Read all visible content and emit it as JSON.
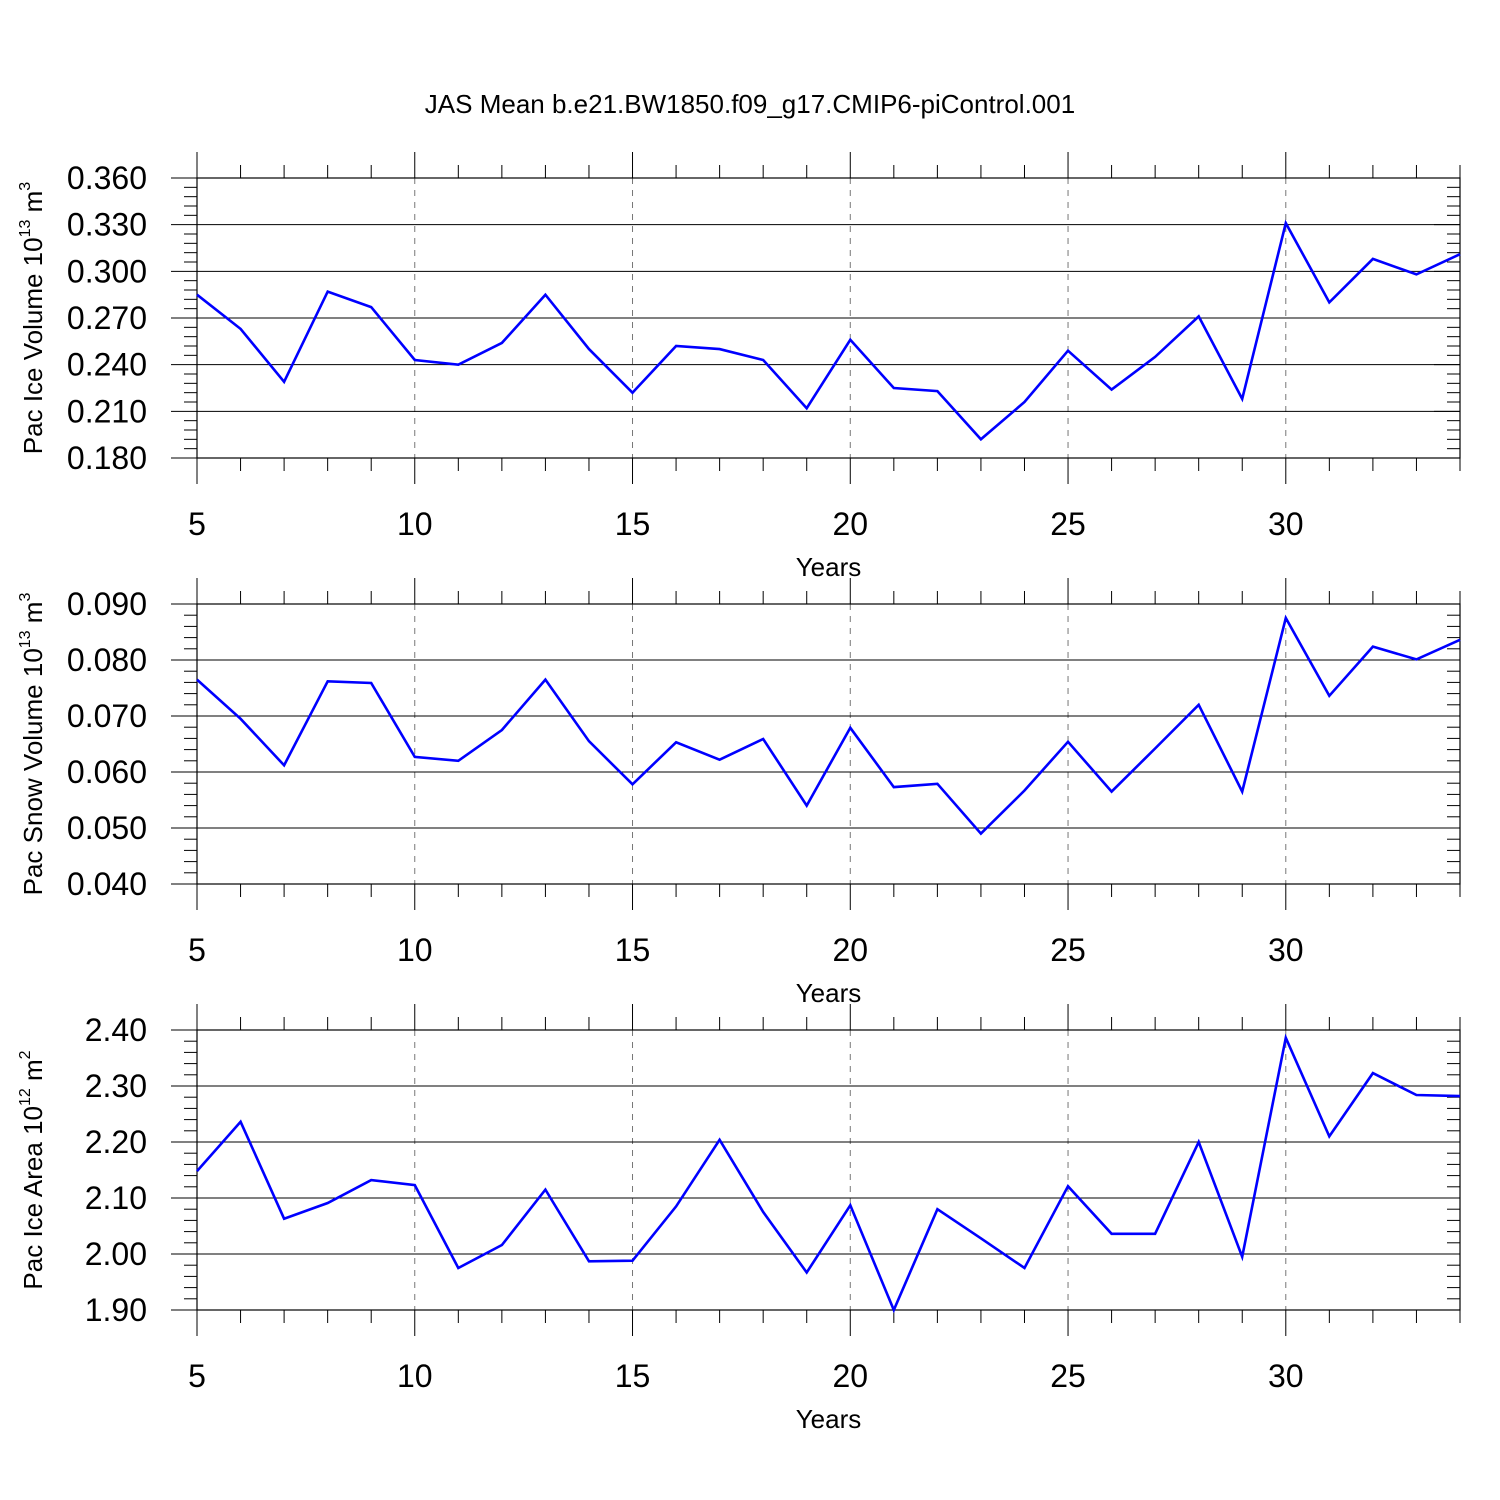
{
  "title": "JAS Mean b.e21.BW1850.f09_g17.CMIP6-piControl.001",
  "colors": {
    "series": "#0000ff",
    "axis": "#000000",
    "grid": "#777777"
  },
  "chart_data": [
    {
      "type": "line",
      "ylabel": {
        "text": "Pac Ice Volume 10",
        "exp": "13",
        "unit": "m",
        "unit_exp": "3"
      },
      "xlabel": "Years",
      "xlim": [
        5,
        34
      ],
      "ylim": [
        0.18,
        0.36
      ],
      "x_ticks": [
        "5",
        "10",
        "15",
        "20",
        "25",
        "30"
      ],
      "y_ticks": [
        "0.180",
        "0.210",
        "0.240",
        "0.270",
        "0.300",
        "0.330",
        "0.360"
      ],
      "grid": "dashed vertical at major x ticks",
      "x": [
        5,
        6,
        7,
        8,
        9,
        10,
        11,
        12,
        13,
        14,
        15,
        16,
        17,
        18,
        19,
        20,
        21,
        22,
        23,
        24,
        25,
        26,
        27,
        28,
        29,
        30,
        31,
        32,
        33,
        34
      ],
      "series": [
        {
          "values": [
            0.285,
            0.263,
            0.229,
            0.287,
            0.277,
            0.243,
            0.24,
            0.254,
            0.285,
            0.25,
            0.222,
            0.252,
            0.25,
            0.243,
            0.212,
            0.256,
            0.225,
            0.223,
            0.192,
            0.216,
            0.249,
            0.224,
            0.245,
            0.271,
            0.218,
            0.331,
            0.28,
            0.308,
            0.298,
            0.311
          ]
        }
      ]
    },
    {
      "type": "line",
      "ylabel": {
        "text": "Pac Snow Volume 10",
        "exp": "13",
        "unit": "m",
        "unit_exp": "3"
      },
      "xlabel": "Years",
      "xlim": [
        5,
        34
      ],
      "ylim": [
        0.04,
        0.09
      ],
      "x_ticks": [
        "5",
        "10",
        "15",
        "20",
        "25",
        "30"
      ],
      "y_ticks": [
        "0.040",
        "0.050",
        "0.060",
        "0.070",
        "0.080",
        "0.090"
      ],
      "grid": "dashed vertical at major x ticks",
      "x": [
        5,
        6,
        7,
        8,
        9,
        10,
        11,
        12,
        13,
        14,
        15,
        16,
        17,
        18,
        19,
        20,
        21,
        22,
        23,
        24,
        25,
        26,
        27,
        28,
        29,
        30,
        31,
        32,
        33,
        34
      ],
      "series": [
        {
          "values": [
            0.0765,
            0.0695,
            0.0612,
            0.0762,
            0.0759,
            0.0627,
            0.062,
            0.0675,
            0.0765,
            0.0655,
            0.0578,
            0.0653,
            0.0622,
            0.0659,
            0.054,
            0.0679,
            0.0573,
            0.0579,
            0.049,
            0.0567,
            0.0654,
            0.0565,
            0.0642,
            0.072,
            0.0565,
            0.0875,
            0.0736,
            0.0824,
            0.0801,
            0.0836
          ]
        }
      ]
    },
    {
      "type": "line",
      "ylabel": {
        "text": "Pac Ice Area 10",
        "exp": "12",
        "unit": "m",
        "unit_exp": "2"
      },
      "xlabel": "Years",
      "xlim": [
        5,
        34
      ],
      "ylim": [
        1.9,
        2.4
      ],
      "x_ticks": [
        "5",
        "10",
        "15",
        "20",
        "25",
        "30"
      ],
      "y_ticks": [
        "1.90",
        "2.00",
        "2.10",
        "2.20",
        "2.30",
        "2.40"
      ],
      "grid": "dashed vertical at major x ticks",
      "x": [
        5,
        6,
        7,
        8,
        9,
        10,
        11,
        12,
        13,
        14,
        15,
        16,
        17,
        18,
        19,
        20,
        21,
        22,
        23,
        24,
        25,
        26,
        27,
        28,
        29,
        30,
        31,
        32,
        33,
        34
      ],
      "series": [
        {
          "values": [
            2.148,
            2.236,
            2.063,
            2.091,
            2.132,
            2.123,
            1.975,
            2.016,
            2.115,
            1.987,
            1.988,
            2.085,
            2.204,
            2.075,
            1.967,
            2.087,
            1.9,
            2.08,
            2.028,
            1.975,
            2.121,
            2.036,
            2.036,
            2.2,
            1.995,
            2.386,
            2.21,
            2.323,
            2.284,
            2.282
          ]
        }
      ]
    }
  ]
}
